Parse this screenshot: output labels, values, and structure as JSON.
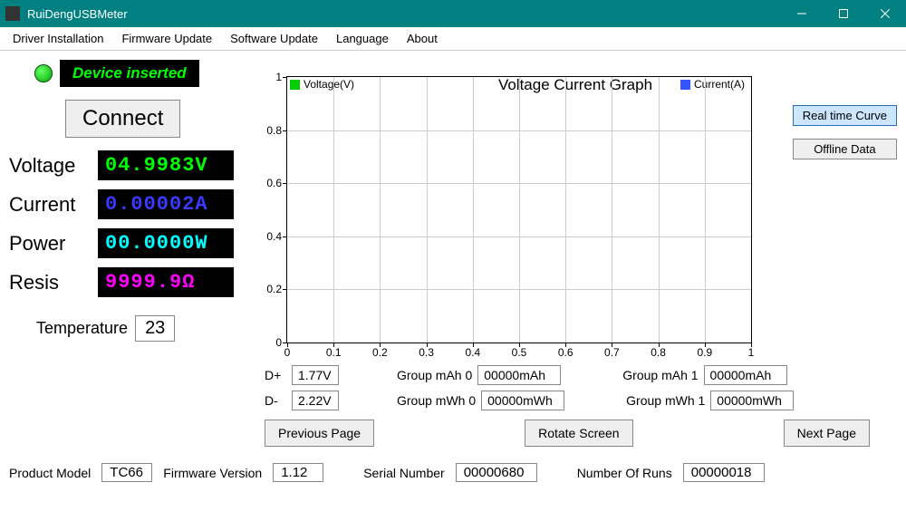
{
  "window": {
    "title": "RuiDengUSBMeter",
    "titlebar_color": "#008080"
  },
  "menu": [
    "Driver Installation",
    "Firmware Update",
    "Software Update",
    "Language",
    "About"
  ],
  "status": {
    "text": "Device inserted",
    "led_color": "#00ff00"
  },
  "connect_button": "Connect",
  "measurements": [
    {
      "label": "Voltage",
      "value": "04.9983V",
      "color": "#00ff00"
    },
    {
      "label": "Current",
      "value": "0.00002A",
      "color": "#3a3aff"
    },
    {
      "label": "Power",
      "value": "00.0000W",
      "color": "#00ffff"
    },
    {
      "label": "Resis",
      "value": "9999.9Ω",
      "color": "#ff00ff"
    }
  ],
  "temperature": {
    "label": "Temperature",
    "value": "23"
  },
  "chart": {
    "title": "Voltage Current Graph",
    "legend": [
      {
        "label": "Voltage(V)",
        "color": "#00cc00"
      },
      {
        "label": "Current(A)",
        "color": "#3355ff"
      }
    ],
    "xlim": [
      0,
      1
    ],
    "ylim": [
      0,
      1
    ],
    "xticks": [
      0,
      0.1,
      0.2,
      0.3,
      0.4,
      0.5,
      0.6,
      0.7,
      0.8,
      0.9,
      1
    ],
    "yticks": [
      0,
      0.2,
      0.4,
      0.6,
      0.8,
      1
    ],
    "grid_color": "#cccccc",
    "background_color": "#ffffff",
    "mode_buttons": [
      "Real time Curve",
      "Offline Data"
    ],
    "active_mode": 0
  },
  "dplus": {
    "label": "D+",
    "value": "1.77V"
  },
  "dminus": {
    "label": "D-",
    "value": "2.22V"
  },
  "groups": {
    "mah0": {
      "label": "Group mAh 0",
      "value": "00000mAh"
    },
    "mwh0": {
      "label": "Group mWh 0",
      "value": "00000mWh"
    },
    "mah1": {
      "label": "Group mAh 1",
      "value": "00000mAh"
    },
    "mwh1": {
      "label": "Group mWh 1",
      "value": "00000mWh"
    }
  },
  "page_buttons": {
    "prev": "Previous Page",
    "rotate": "Rotate Screen",
    "next": "Next Page"
  },
  "footer": {
    "product_model": {
      "label": "Product Model",
      "value": "TC66"
    },
    "firmware_version": {
      "label": "Firmware Version",
      "value": "1.12"
    },
    "serial_number": {
      "label": "Serial Number",
      "value": "00000680"
    },
    "number_of_runs": {
      "label": "Number Of Runs",
      "value": "00000018"
    }
  }
}
